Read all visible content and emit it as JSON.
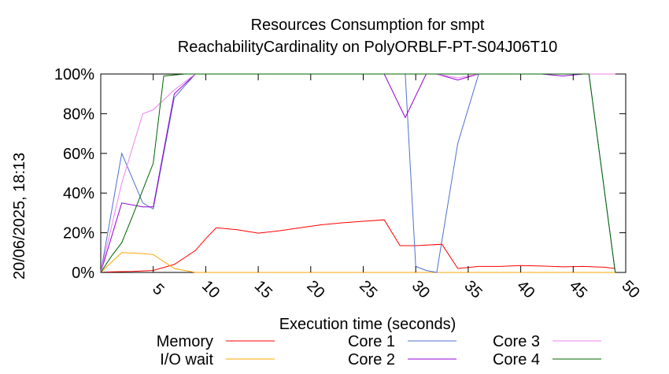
{
  "chart_data": {
    "type": "line",
    "title": "Resources Consumption for smpt",
    "subtitle": "ReachabilityCardinality on PolyORBLF-PT-S04J06T10",
    "xlabel": "Execution time (seconds)",
    "ylabel": "",
    "side_label": "20/06/2025, 18:13",
    "xlim": [
      0,
      50
    ],
    "ylim": [
      0,
      100
    ],
    "xticks": [
      5,
      10,
      15,
      20,
      25,
      30,
      35,
      40,
      45,
      50
    ],
    "yticks": [
      0,
      20,
      40,
      60,
      80,
      100
    ],
    "ytick_labels": [
      "0%",
      "20%",
      "40%",
      "60%",
      "80%",
      "100%"
    ],
    "grid": false,
    "legend_position": "bottom",
    "series": [
      {
        "name": "Memory",
        "color": "#ff0000",
        "points": [
          [
            0,
            0
          ],
          [
            1,
            0.3
          ],
          [
            3,
            0.5
          ],
          [
            5,
            1
          ],
          [
            7,
            4
          ],
          [
            9,
            11
          ],
          [
            10,
            17
          ],
          [
            11,
            22.5
          ],
          [
            13,
            21.5
          ],
          [
            15,
            19.8
          ],
          [
            17,
            21
          ],
          [
            19,
            22.5
          ],
          [
            21,
            24
          ],
          [
            23,
            25
          ],
          [
            25,
            25.8
          ],
          [
            27,
            26.5
          ],
          [
            28.5,
            13.5
          ],
          [
            30,
            13.5
          ],
          [
            32.5,
            14.2
          ],
          [
            34,
            2
          ],
          [
            36,
            3
          ],
          [
            38,
            3
          ],
          [
            40,
            3.5
          ],
          [
            42,
            3.2
          ],
          [
            44,
            2.8
          ],
          [
            46,
            3
          ],
          [
            48,
            2.6
          ],
          [
            49,
            2
          ]
        ]
      },
      {
        "name": "I/O wait",
        "color": "#ffa500",
        "points": [
          [
            0,
            0
          ],
          [
            1,
            5
          ],
          [
            2,
            10
          ],
          [
            4,
            9.5
          ],
          [
            5,
            9
          ],
          [
            7,
            2
          ],
          [
            9,
            0
          ],
          [
            49,
            0
          ]
        ]
      },
      {
        "name": "Core 1",
        "color": "#4f6fcf",
        "points": [
          [
            0,
            0
          ],
          [
            2,
            60
          ],
          [
            4,
            35
          ],
          [
            5,
            32
          ],
          [
            7,
            88
          ],
          [
            9,
            100
          ],
          [
            29,
            100
          ],
          [
            30,
            3
          ],
          [
            31,
            1
          ],
          [
            32,
            0
          ],
          [
            34,
            65
          ],
          [
            36,
            100
          ],
          [
            46.5,
            100
          ],
          [
            49,
            0
          ]
        ]
      },
      {
        "name": "Core 2",
        "color": "#9400d3",
        "points": [
          [
            0,
            0
          ],
          [
            2,
            35
          ],
          [
            4,
            33
          ],
          [
            5,
            33
          ],
          [
            7,
            90
          ],
          [
            9,
            100
          ],
          [
            27,
            100
          ],
          [
            29,
            78
          ],
          [
            31,
            100
          ],
          [
            32,
            100
          ],
          [
            34,
            97
          ],
          [
            36,
            100
          ],
          [
            42,
            100
          ],
          [
            44,
            99
          ],
          [
            46,
            100
          ],
          [
            49,
            100
          ]
        ]
      },
      {
        "name": "Core 3",
        "color": "#ee82ee",
        "points": [
          [
            0,
            0
          ],
          [
            2,
            45
          ],
          [
            4,
            80
          ],
          [
            5,
            82
          ],
          [
            7,
            92
          ],
          [
            9,
            100
          ],
          [
            32,
            100
          ],
          [
            34,
            98
          ],
          [
            36,
            100
          ],
          [
            49,
            100
          ]
        ]
      },
      {
        "name": "Core 4",
        "color": "#006400",
        "points": [
          [
            0,
            0
          ],
          [
            1,
            8
          ],
          [
            2,
            15
          ],
          [
            3,
            28
          ],
          [
            5,
            55
          ],
          [
            6,
            99
          ],
          [
            8,
            100
          ],
          [
            46.5,
            100
          ],
          [
            49,
            0
          ]
        ]
      }
    ]
  }
}
